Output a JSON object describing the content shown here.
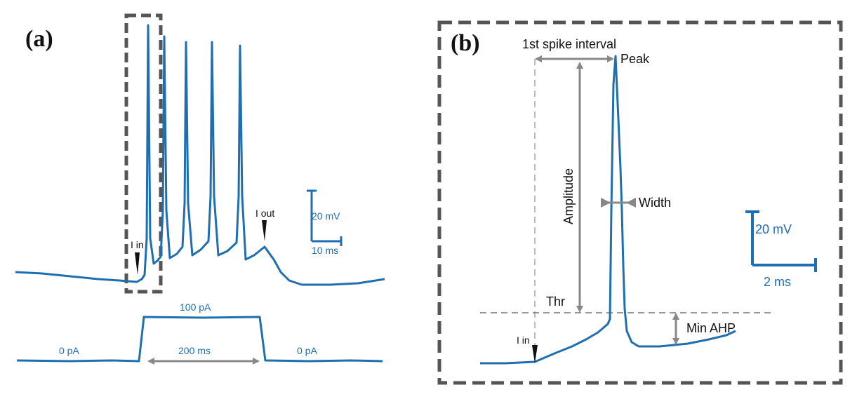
{
  "panel_a": {
    "label": "(a)",
    "annotations": {
      "i_in": "I in",
      "i_out": "I out",
      "current_high": "100 pA",
      "current_low_left": "0  pA",
      "current_low_right": "0  pA",
      "duration": "200 ms"
    },
    "scale_bar": {
      "vertical": "20 mV",
      "horizontal": "10 ms"
    }
  },
  "panel_b": {
    "label": "(b)",
    "annotations": {
      "interval": "1st spike interval",
      "peak": "Peak",
      "amplitude": "Amplitude",
      "width": "Width",
      "threshold": "Thr",
      "min_ahp": "Min AHP",
      "i_in": "I in"
    },
    "scale_bar": {
      "vertical": "20 mV",
      "horizontal": "2 ms"
    }
  },
  "colors": {
    "trace": "#1f6fb0",
    "arrow": "#888888",
    "dashed_box": "#555555",
    "text": "#111111"
  }
}
